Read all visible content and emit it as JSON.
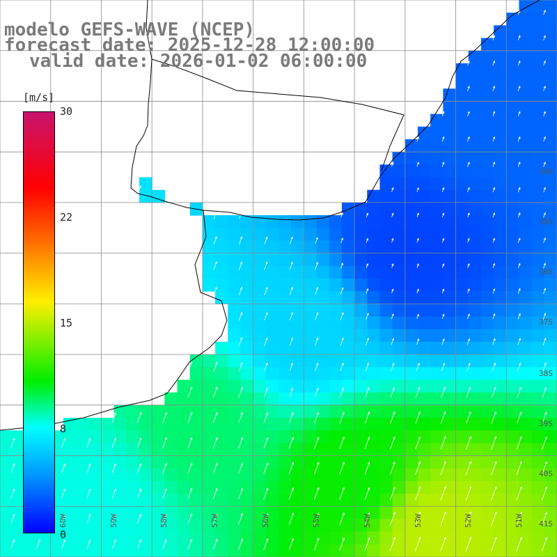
{
  "title": {
    "line1": "modelo GEFS-WAVE (NCEP)",
    "line2": "forecast date: 2025-12-28 12:00:00",
    "line3": "valid date: 2026-01-02 06:00:00"
  },
  "colorbar": {
    "units": "[m/s]",
    "ticks": [
      "30",
      "22",
      "15",
      "8",
      "0"
    ],
    "colors": [
      "#0000ff",
      "#0090ff",
      "#00ffff",
      "#00ee00",
      "#ffee00",
      "#ff6600",
      "#ff0000",
      "#c8146e"
    ]
  },
  "grid": {
    "lat_labels": [
      "34S",
      "35S",
      "36S",
      "37S",
      "38S",
      "39S",
      "40S",
      "41S"
    ],
    "lon_labels": [
      "60W",
      "59W",
      "58W",
      "57W",
      "56W",
      "55W",
      "54W",
      "53W",
      "52W",
      "51W"
    ]
  },
  "chart_data": {
    "type": "heatmap",
    "variable": "wind speed",
    "units": "[m/s]",
    "lon_range": [
      -61.0,
      -50.0
    ],
    "lat_range": [
      -41.0,
      -30.0
    ],
    "scale_range": [
      0,
      30
    ],
    "description_points": [
      {
        "lon": -51.5,
        "lat": -32.0,
        "speed": 3
      },
      {
        "lon": -53.0,
        "lat": -35.0,
        "speed": 2
      },
      {
        "lon": -55.0,
        "lat": -36.5,
        "speed": 7
      },
      {
        "lon": -57.0,
        "lat": -38.5,
        "speed": 11
      },
      {
        "lon": -54.0,
        "lat": -39.5,
        "speed": 13
      },
      {
        "lon": -52.5,
        "lat": -40.5,
        "speed": 16
      },
      {
        "lon": -59.0,
        "lat": -40.0,
        "speed": 9
      }
    ]
  }
}
